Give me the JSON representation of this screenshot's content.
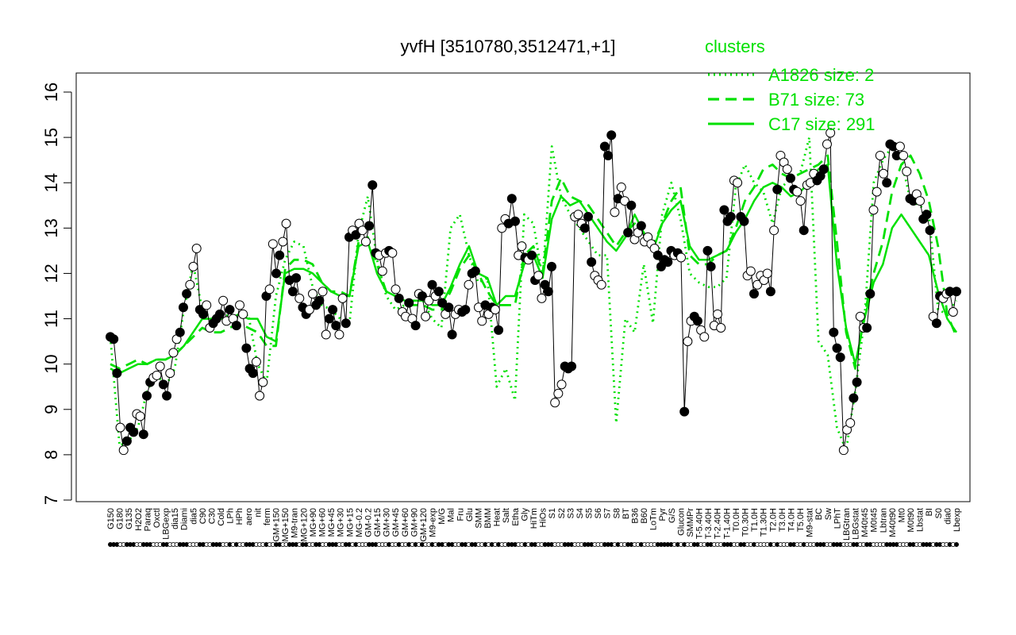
{
  "chart_data": {
    "type": "line",
    "title": "yvfH [3510780,3512471,+1]",
    "xlabel": "",
    "ylabel": "",
    "ylim": [
      7,
      16
    ],
    "yticks": [
      7,
      8,
      9,
      10,
      11,
      12,
      13,
      14,
      15,
      16
    ],
    "grid": false,
    "legend": {
      "title": "clusters",
      "position": "top-right",
      "color": "#00e000",
      "entries": [
        {
          "label": "A1826 size: 2",
          "style": "dotted"
        },
        {
          "label": "B71 size: 73",
          "style": "dashed"
        },
        {
          "label": "C17 size: 291",
          "style": "solid"
        }
      ]
    },
    "x_labels": [
      "G150",
      "G180",
      "G135",
      "H2O2",
      "Paraq",
      "Oxctl",
      "LBGexp",
      "dia15",
      "Diami",
      "dia5",
      "C90",
      "C30",
      "Cold",
      "LPh",
      "HPh",
      "aero",
      "nit",
      "ferm",
      "GM+150",
      "MG+150",
      "M9-tran",
      "MG+120",
      "MG+90",
      "MG+60",
      "MG+45",
      "MG+30",
      "MG+15",
      "MG-0.2",
      "GM-0.2",
      "GM+15",
      "GM+30",
      "GM+45",
      "GM+60",
      "GM+90",
      "GM+120",
      "M9-exp",
      "M/G",
      "Mal",
      "Fru",
      "Glu",
      "SMM",
      "BMM",
      "Heat",
      "Salt",
      "Etha",
      "Gly",
      "HiTm",
      "HiOs",
      "S1",
      "S2",
      "S3",
      "S4",
      "S5",
      "S6",
      "S7",
      "S8",
      "BT",
      "B36",
      "B60",
      "LoTm",
      "Pyr",
      "G/S",
      "Glucon",
      "SMMPr",
      "T-5.40H",
      "T-3.40H",
      "T-2.40H",
      "T-1.40H",
      "T0.0H",
      "T0.30H",
      "T1.0H",
      "T1.30H",
      "T2.0H",
      "T3.0H",
      "T4.0H",
      "T5.0H",
      "M9-stat",
      "BC",
      "Sw",
      "LPhT",
      "LBGtran",
      "LBGstat",
      "M40t45",
      "M0t45",
      "Lbtran",
      "M40t90",
      "Mt0",
      "M0t90",
      "Lbstat",
      "BI",
      "S0",
      "dia0",
      "Lbexp"
    ],
    "series": [
      {
        "name": "C17 size: 291",
        "style": "solid",
        "values": [
          9.9,
          9.8,
          9.9,
          10.0,
          10.0,
          10.1,
          10.1,
          10.2,
          10.4,
          10.7,
          11.0,
          11.0,
          11.0,
          11.0,
          11.1,
          11.0,
          11.0,
          10.6,
          10.5,
          12.0,
          12.1,
          12.1,
          12.0,
          11.8,
          11.6,
          11.5,
          11.5,
          12.6,
          12.7,
          12.0,
          11.6,
          11.5,
          11.4,
          11.4,
          11.4,
          11.3,
          11.3,
          11.7,
          12.2,
          12.6,
          12.0,
          11.9,
          11.3,
          11.5,
          11.5,
          12.2,
          12.4,
          11.9,
          13.2,
          13.7,
          13.5,
          13.6,
          13.3,
          13.0,
          12.7,
          12.5,
          12.8,
          13.3,
          12.9,
          12.5,
          13.1,
          13.4,
          13.6,
          12.6,
          12.3,
          12.3,
          12.4,
          12.5,
          12.9,
          13.2,
          13.6,
          13.9,
          14.0,
          13.9,
          13.7,
          13.8,
          14.0,
          14.3,
          14.4,
          12.2,
          10.8,
          10.0,
          11.0,
          11.8,
          12.2,
          13.0,
          13.3,
          13.0,
          12.7,
          12.4,
          11.6,
          11.0,
          10.7
        ]
      },
      {
        "name": "B71 size: 73",
        "style": "dashed",
        "values": [
          10.0,
          9.9,
          10.0,
          10.1,
          10.0,
          10.1,
          10.1,
          10.2,
          10.4,
          10.6,
          10.8,
          10.7,
          10.7,
          10.8,
          10.9,
          10.8,
          10.7,
          10.4,
          10.4,
          12.1,
          12.3,
          12.3,
          12.2,
          11.8,
          11.6,
          11.6,
          11.5,
          12.7,
          12.8,
          12.2,
          11.6,
          11.5,
          11.3,
          11.3,
          11.3,
          11.2,
          11.2,
          11.6,
          12.1,
          12.4,
          12.0,
          11.6,
          11.3,
          11.3,
          11.3,
          12.4,
          12.6,
          12.0,
          13.6,
          14.1,
          13.7,
          13.6,
          13.5,
          13.2,
          12.9,
          12.6,
          12.9,
          13.1,
          12.9,
          12.6,
          13.1,
          13.6,
          13.9,
          12.4,
          12.2,
          12.2,
          12.4,
          12.5,
          13.0,
          13.6,
          13.9,
          14.3,
          14.4,
          14.2,
          14.1,
          14.2,
          14.3,
          14.4,
          14.6,
          12.7,
          10.7,
          9.9,
          11.1,
          12.0,
          12.7,
          13.8,
          14.4,
          14.6,
          14.2,
          13.6,
          12.6,
          11.1,
          10.6
        ]
      },
      {
        "name": "A1826 size: 2",
        "style": "dotted",
        "values": [
          10.6,
          8.2,
          8.3,
          8.6,
          9.4,
          9.8,
          9.5,
          9.9,
          11.2,
          12.2,
          11.2,
          11.0,
          11.0,
          11.1,
          11.0,
          11.1,
          10.0,
          9.6,
          11.5,
          12.3,
          12.7,
          12.6,
          11.7,
          11.3,
          11.2,
          11.0,
          10.9,
          12.9,
          13.7,
          12.3,
          11.5,
          11.2,
          11.3,
          11.4,
          11.4,
          11.0,
          10.8,
          13.0,
          13.3,
          12.4,
          11.8,
          11.9,
          9.5,
          9.9,
          9.2,
          13.3,
          13.1,
          11.9,
          14.8,
          13.7,
          13.3,
          13.0,
          12.7,
          12.4,
          12.4,
          8.7,
          11.0,
          10.7,
          12.2,
          10.9,
          13.3,
          14.0,
          13.2,
          12.0,
          11.8,
          11.7,
          11.7,
          11.9,
          13.9,
          14.4,
          14.0,
          13.8,
          13.1,
          13.9,
          14.1,
          14.2,
          15.0,
          10.5,
          10.2,
          8.6,
          8.1,
          9.4,
          11.0,
          14.0,
          14.5,
          14.8,
          14.5,
          13.6,
          13.5,
          13.3,
          11.2,
          11.1,
          11.4
        ]
      }
    ],
    "points": [
      [
        10.6,
        1
      ],
      [
        10.55,
        1
      ],
      [
        9.8,
        1
      ],
      [
        8.6,
        0
      ],
      [
        8.1,
        0
      ],
      [
        8.3,
        1
      ],
      [
        8.6,
        1
      ],
      [
        8.5,
        1
      ],
      [
        8.9,
        0
      ],
      [
        8.85,
        0
      ],
      [
        8.45,
        1
      ],
      [
        9.3,
        1
      ],
      [
        9.6,
        1
      ],
      [
        9.7,
        0
      ],
      [
        9.75,
        0
      ],
      [
        9.95,
        0
      ],
      [
        9.55,
        1
      ],
      [
        9.3,
        1
      ],
      [
        9.8,
        0
      ],
      [
        10.25,
        0
      ],
      [
        10.55,
        0
      ],
      [
        10.7,
        1
      ],
      [
        11.25,
        1
      ],
      [
        11.55,
        1
      ],
      [
        11.75,
        0
      ],
      [
        12.15,
        0
      ],
      [
        12.55,
        0
      ],
      [
        11.2,
        1
      ],
      [
        11.1,
        1
      ],
      [
        11.3,
        0
      ],
      [
        10.8,
        0
      ],
      [
        10.9,
        1
      ],
      [
        11.0,
        1
      ],
      [
        11.1,
        1
      ],
      [
        11.4,
        0
      ],
      [
        10.95,
        0
      ],
      [
        11.2,
        1
      ],
      [
        11.0,
        0
      ],
      [
        10.85,
        1
      ],
      [
        11.3,
        0
      ],
      [
        11.1,
        0
      ],
      [
        10.35,
        1
      ],
      [
        9.9,
        1
      ],
      [
        9.8,
        1
      ],
      [
        10.05,
        0
      ],
      [
        9.3,
        0
      ],
      [
        9.6,
        0
      ],
      [
        11.5,
        1
      ],
      [
        11.65,
        0
      ],
      [
        12.65,
        0
      ],
      [
        12.0,
        1
      ],
      [
        12.4,
        1
      ],
      [
        12.7,
        0
      ],
      [
        13.1,
        0
      ],
      [
        11.85,
        1
      ],
      [
        11.6,
        1
      ],
      [
        11.9,
        1
      ],
      [
        11.45,
        0
      ],
      [
        11.25,
        1
      ],
      [
        11.1,
        1
      ],
      [
        11.2,
        0
      ],
      [
        11.55,
        0
      ],
      [
        11.3,
        1
      ],
      [
        11.4,
        1
      ],
      [
        11.6,
        0
      ],
      [
        10.65,
        0
      ],
      [
        11.0,
        1
      ],
      [
        11.2,
        1
      ],
      [
        10.85,
        1
      ],
      [
        10.65,
        0
      ],
      [
        11.45,
        0
      ],
      [
        10.9,
        1
      ],
      [
        12.8,
        1
      ],
      [
        12.95,
        0
      ],
      [
        12.85,
        1
      ],
      [
        13.1,
        0
      ],
      [
        12.95,
        0
      ],
      [
        12.7,
        0
      ],
      [
        13.05,
        1
      ],
      [
        13.95,
        1
      ],
      [
        12.45,
        1
      ],
      [
        12.4,
        0
      ],
      [
        12.05,
        0
      ],
      [
        12.45,
        0
      ],
      [
        12.5,
        1
      ],
      [
        12.45,
        0
      ],
      [
        11.65,
        0
      ],
      [
        11.45,
        1
      ],
      [
        11.15,
        0
      ],
      [
        11.05,
        0
      ],
      [
        11.35,
        1
      ],
      [
        11.0,
        0
      ],
      [
        10.85,
        1
      ],
      [
        11.55,
        0
      ],
      [
        11.5,
        1
      ],
      [
        11.05,
        0
      ],
      [
        11.4,
        0
      ],
      [
        11.75,
        1
      ],
      [
        11.5,
        0
      ],
      [
        11.6,
        1
      ],
      [
        11.35,
        1
      ],
      [
        11.1,
        0
      ],
      [
        11.25,
        1
      ],
      [
        10.65,
        1
      ],
      [
        11.1,
        0
      ],
      [
        11.2,
        0
      ],
      [
        11.15,
        1
      ],
      [
        11.2,
        1
      ],
      [
        11.75,
        0
      ],
      [
        12.0,
        1
      ],
      [
        12.05,
        1
      ],
      [
        11.25,
        0
      ],
      [
        10.95,
        0
      ],
      [
        11.3,
        1
      ],
      [
        11.1,
        0
      ],
      [
        11.25,
        1
      ],
      [
        11.2,
        0
      ],
      [
        10.75,
        1
      ],
      [
        13.0,
        0
      ],
      [
        13.2,
        0
      ],
      [
        13.1,
        1
      ],
      [
        13.65,
        1
      ],
      [
        13.15,
        1
      ],
      [
        12.4,
        0
      ],
      [
        12.6,
        0
      ],
      [
        12.35,
        1
      ],
      [
        12.3,
        0
      ],
      [
        12.4,
        1
      ],
      [
        11.85,
        1
      ],
      [
        11.95,
        0
      ],
      [
        11.45,
        0
      ],
      [
        11.75,
        1
      ],
      [
        11.6,
        1
      ],
      [
        12.15,
        1
      ],
      [
        9.15,
        0
      ],
      [
        9.35,
        0
      ],
      [
        9.55,
        0
      ],
      [
        9.95,
        1
      ],
      [
        9.9,
        1
      ],
      [
        9.95,
        1
      ],
      [
        13.25,
        0
      ],
      [
        13.3,
        0
      ],
      [
        13.1,
        0
      ],
      [
        13.0,
        1
      ],
      [
        13.25,
        1
      ],
      [
        12.25,
        1
      ],
      [
        11.95,
        0
      ],
      [
        11.85,
        0
      ],
      [
        11.75,
        0
      ],
      [
        14.8,
        1
      ],
      [
        14.6,
        1
      ],
      [
        15.05,
        1
      ],
      [
        13.35,
        0
      ],
      [
        13.65,
        1
      ],
      [
        13.9,
        0
      ],
      [
        13.6,
        0
      ],
      [
        12.9,
        1
      ],
      [
        13.5,
        1
      ],
      [
        12.75,
        0
      ],
      [
        12.9,
        0
      ],
      [
        13.05,
        1
      ],
      [
        12.7,
        0
      ],
      [
        12.8,
        0
      ],
      [
        12.65,
        0
      ],
      [
        12.55,
        0
      ],
      [
        12.4,
        1
      ],
      [
        12.15,
        1
      ],
      [
        12.3,
        1
      ],
      [
        12.25,
        1
      ],
      [
        12.5,
        1
      ],
      [
        12.4,
        0
      ],
      [
        12.45,
        1
      ],
      [
        12.35,
        0
      ],
      [
        8.95,
        1
      ],
      [
        10.5,
        0
      ],
      [
        10.95,
        0
      ],
      [
        11.05,
        1
      ],
      [
        10.95,
        1
      ],
      [
        10.75,
        0
      ],
      [
        10.6,
        0
      ],
      [
        12.5,
        1
      ],
      [
        12.15,
        1
      ],
      [
        10.85,
        0
      ],
      [
        11.1,
        0
      ],
      [
        10.8,
        0
      ],
      [
        13.4,
        1
      ],
      [
        13.15,
        1
      ],
      [
        13.25,
        1
      ],
      [
        14.05,
        0
      ],
      [
        14.0,
        0
      ],
      [
        13.25,
        1
      ],
      [
        13.15,
        1
      ],
      [
        11.95,
        0
      ],
      [
        12.05,
        0
      ],
      [
        11.55,
        1
      ],
      [
        11.75,
        0
      ],
      [
        11.95,
        0
      ],
      [
        11.85,
        0
      ],
      [
        12.0,
        0
      ],
      [
        11.6,
        1
      ],
      [
        12.95,
        0
      ],
      [
        13.85,
        1
      ],
      [
        14.6,
        0
      ],
      [
        14.45,
        0
      ],
      [
        14.3,
        0
      ],
      [
        14.1,
        1
      ],
      [
        13.85,
        1
      ],
      [
        13.8,
        0
      ],
      [
        13.6,
        0
      ],
      [
        12.95,
        1
      ],
      [
        13.95,
        0
      ],
      [
        14.0,
        0
      ],
      [
        14.2,
        0
      ],
      [
        14.05,
        1
      ],
      [
        14.15,
        1
      ],
      [
        14.3,
        1
      ],
      [
        14.85,
        0
      ],
      [
        15.1,
        0
      ],
      [
        10.7,
        1
      ],
      [
        10.35,
        1
      ],
      [
        10.15,
        1
      ],
      [
        8.1,
        0
      ],
      [
        8.55,
        0
      ],
      [
        8.7,
        0
      ],
      [
        9.25,
        1
      ],
      [
        9.6,
        1
      ],
      [
        11.05,
        0
      ],
      [
        10.8,
        0
      ],
      [
        10.8,
        1
      ],
      [
        11.55,
        1
      ],
      [
        13.4,
        0
      ],
      [
        13.8,
        0
      ],
      [
        14.6,
        0
      ],
      [
        14.2,
        0
      ],
      [
        14.0,
        1
      ],
      [
        14.85,
        1
      ],
      [
        14.8,
        1
      ],
      [
        14.6,
        1
      ],
      [
        14.8,
        0
      ],
      [
        14.6,
        0
      ],
      [
        14.25,
        0
      ],
      [
        13.65,
        1
      ],
      [
        13.6,
        1
      ],
      [
        13.75,
        0
      ],
      [
        13.6,
        0
      ],
      [
        13.2,
        1
      ],
      [
        13.3,
        1
      ],
      [
        12.95,
        1
      ],
      [
        11.05,
        0
      ],
      [
        10.9,
        1
      ],
      [
        11.5,
        1
      ],
      [
        11.45,
        0
      ],
      [
        11.55,
        0
      ],
      [
        11.6,
        1
      ],
      [
        11.15,
        0
      ],
      [
        11.6,
        1
      ]
    ]
  }
}
